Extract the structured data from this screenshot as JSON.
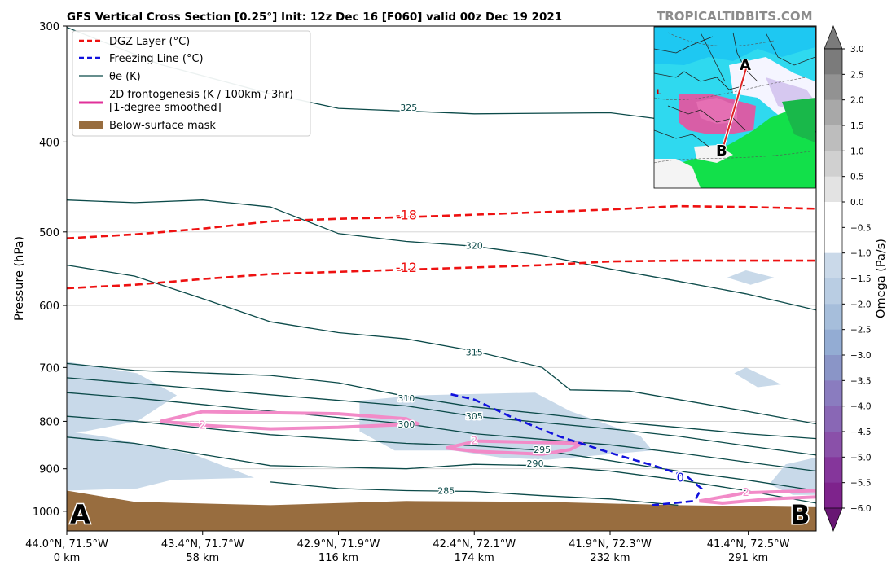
{
  "header": {
    "title": "GFS Vertical Cross Section [0.25°] Init: 12z Dec 16 [F060] valid 00z Dec 19 2021",
    "brand": "TROPICALTIDBITS.COM"
  },
  "colors": {
    "dgz": "#ee1111",
    "freezing": "#1111dd",
    "theta": "#0b4a49",
    "fronto": "#f28bc8",
    "mask": "#986d3f",
    "omega_fill": "#c8d9e9"
  },
  "chart_data": {
    "type": "cross-section",
    "ylabel": "Pressure (hPa)",
    "yscale": "log",
    "ylim": [
      1050,
      300
    ],
    "yticks": [
      300,
      400,
      500,
      600,
      700,
      800,
      900,
      1000
    ],
    "xlim": [
      0,
      320
    ],
    "xticks": [
      {
        "x": 0,
        "coord": "44.0°N, 71.5°W",
        "dist": "0 km"
      },
      {
        "x": 58,
        "coord": "43.4°N, 71.7°W",
        "dist": "58 km"
      },
      {
        "x": 116,
        "coord": "42.9°N, 71.9°W",
        "dist": "116 km"
      },
      {
        "x": 174,
        "coord": "42.4°N, 72.1°W",
        "dist": "174 km"
      },
      {
        "x": 232,
        "coord": "41.9°N, 72.3°W",
        "dist": "232 km"
      },
      {
        "x": 291,
        "coord": "41.4°N, 72.5°W",
        "dist": "291 km"
      }
    ],
    "endpoint_labels": {
      "start": "A",
      "end": "B"
    },
    "legend": {
      "placement": "upper-left",
      "items": [
        {
          "key": "dgz",
          "label": "DGZ Layer (°C)"
        },
        {
          "key": "freezing",
          "label": "Freezing Line (°C)"
        },
        {
          "key": "theta",
          "label": "θe (K)"
        },
        {
          "key": "fronto",
          "label": "2D frontogenesis (K / 100km / 3hr)",
          "label2": "[1-degree smoothed]"
        },
        {
          "key": "mask",
          "label": "Below-surface mask"
        }
      ]
    },
    "dgz_lines": [
      {
        "label": "-18",
        "label_at": [
          145,
          481
        ],
        "points": [
          [
            0,
            508
          ],
          [
            29,
            503
          ],
          [
            58,
            496
          ],
          [
            87,
            487
          ],
          [
            116,
            484
          ],
          [
            145,
            482
          ],
          [
            174,
            479
          ],
          [
            203,
            476
          ],
          [
            232,
            473
          ],
          [
            261,
            469
          ],
          [
            290,
            470
          ],
          [
            320,
            472
          ]
        ]
      },
      {
        "label": "-12",
        "label_at": [
          145,
          548
        ],
        "points": [
          [
            0,
            575
          ],
          [
            29,
            570
          ],
          [
            58,
            562
          ],
          [
            87,
            555
          ],
          [
            116,
            552
          ],
          [
            145,
            549
          ],
          [
            174,
            546
          ],
          [
            203,
            543
          ],
          [
            232,
            538
          ],
          [
            261,
            537
          ],
          [
            290,
            537
          ],
          [
            320,
            537
          ]
        ]
      }
    ],
    "freezing_line": {
      "label": "0",
      "label_at": [
        262,
        922
      ],
      "points": [
        [
          164,
          748
        ],
        [
          174,
          758
        ],
        [
          190,
          792
        ],
        [
          210,
          830
        ],
        [
          232,
          865
        ],
        [
          252,
          895
        ],
        [
          265,
          918
        ],
        [
          271,
          945
        ],
        [
          268,
          975
        ],
        [
          250,
          985
        ],
        [
          249,
          985
        ]
      ]
    },
    "theta_e": [
      {
        "label": "325",
        "label_at": [
          146,
          367
        ],
        "points": [
          [
            0,
            301
          ],
          [
            40,
            330
          ],
          [
            87,
            355
          ],
          [
            116,
            368
          ],
          [
            174,
            373
          ],
          [
            232,
            372
          ],
          [
            261,
            380
          ],
          [
            290,
            385
          ],
          [
            320,
            390
          ]
        ]
      },
      {
        "label": "320",
        "label_at": [
          174,
          517
        ],
        "points": [
          [
            0,
            462
          ],
          [
            29,
            465
          ],
          [
            58,
            462
          ],
          [
            87,
            470
          ],
          [
            116,
            502
          ],
          [
            145,
            512
          ],
          [
            174,
            518
          ],
          [
            203,
            530
          ],
          [
            232,
            548
          ],
          [
            261,
            565
          ],
          [
            290,
            583
          ],
          [
            320,
            607
          ]
        ]
      },
      {
        "label": "315",
        "label_at": [
          174,
          674
        ],
        "points": [
          [
            0,
            543
          ],
          [
            29,
            558
          ],
          [
            58,
            590
          ],
          [
            87,
            625
          ],
          [
            116,
            642
          ],
          [
            145,
            652
          ],
          [
            174,
            672
          ],
          [
            203,
            700
          ],
          [
            215,
            740
          ],
          [
            240,
            742
          ],
          [
            290,
            780
          ],
          [
            320,
            805
          ]
        ]
      },
      {
        "label": "310",
        "label_at": [
          145,
          755
        ],
        "points": [
          [
            0,
            693
          ],
          [
            29,
            705
          ],
          [
            87,
            714
          ],
          [
            116,
            727
          ],
          [
            145,
            752
          ],
          [
            174,
            772
          ],
          [
            203,
            785
          ],
          [
            232,
            800
          ],
          [
            261,
            812
          ],
          [
            290,
            825
          ],
          [
            320,
            835
          ]
        ]
      },
      {
        "label": "305",
        "label_at": [
          174,
          790
        ],
        "points": [
          [
            0,
            718
          ],
          [
            29,
            728
          ],
          [
            87,
            749
          ],
          [
            145,
            770
          ],
          [
            174,
            790
          ],
          [
            232,
            815
          ],
          [
            261,
            830
          ],
          [
            290,
            850
          ],
          [
            320,
            870
          ]
        ]
      },
      {
        "label": "300",
        "label_at": [
          145,
          806
        ],
        "points": [
          [
            0,
            745
          ],
          [
            29,
            755
          ],
          [
            87,
            780
          ],
          [
            145,
            805
          ],
          [
            174,
            825
          ],
          [
            232,
            848
          ],
          [
            261,
            865
          ],
          [
            290,
            885
          ],
          [
            320,
            905
          ]
        ]
      },
      {
        "label": "295",
        "label_at": [
          203,
          858
        ],
        "points": [
          [
            0,
            790
          ],
          [
            29,
            800
          ],
          [
            87,
            827
          ],
          [
            145,
            845
          ],
          [
            174,
            850
          ],
          [
            203,
            860
          ],
          [
            232,
            882
          ],
          [
            261,
            905
          ],
          [
            290,
            925
          ],
          [
            320,
            950
          ]
        ]
      },
      {
        "label": "290",
        "label_at": [
          200,
          888
        ],
        "points": [
          [
            0,
            832
          ],
          [
            29,
            845
          ],
          [
            87,
            893
          ],
          [
            145,
            900
          ],
          [
            174,
            890
          ],
          [
            203,
            893
          ],
          [
            232,
            905
          ],
          [
            261,
            925
          ],
          [
            290,
            950
          ],
          [
            320,
            980
          ]
        ]
      },
      {
        "label": "285",
        "label_at": [
          162,
          950
        ],
        "points": [
          [
            87,
            930
          ],
          [
            116,
            945
          ],
          [
            145,
            950
          ],
          [
            174,
            952
          ],
          [
            203,
            962
          ],
          [
            232,
            970
          ],
          [
            261,
            985
          ]
        ]
      }
    ],
    "frontogenesis": [
      {
        "label": "2",
        "label_at": [
          58,
          808
        ],
        "points": [
          [
            40,
            800
          ],
          [
            58,
            781
          ],
          [
            116,
            785
          ],
          [
            145,
            795
          ],
          [
            150,
            805
          ],
          [
            116,
            812
          ],
          [
            87,
            815
          ],
          [
            58,
            808
          ],
          [
            40,
            800
          ]
        ]
      },
      {
        "label": "2",
        "label_at": [
          174,
          840
        ],
        "points": [
          [
            162,
            855
          ],
          [
            175,
            840
          ],
          [
            220,
            845
          ],
          [
            215,
            858
          ],
          [
            203,
            868
          ],
          [
            175,
            862
          ],
          [
            162,
            855
          ]
        ]
      },
      {
        "label": "2",
        "label_at": [
          290,
          955
        ],
        "points": [
          [
            270,
            975
          ],
          [
            290,
            955
          ],
          [
            320,
            950
          ],
          [
            320,
            965
          ],
          [
            300,
            970
          ],
          [
            280,
            980
          ],
          [
            270,
            975
          ]
        ]
      }
    ],
    "omega_regions": [
      {
        "points": [
          [
            0,
            690
          ],
          [
            30,
            710
          ],
          [
            47,
            750
          ],
          [
            30,
            800
          ],
          [
            8,
            820
          ],
          [
            0,
            822
          ]
        ]
      },
      {
        "points": [
          [
            0,
            820
          ],
          [
            15,
            830
          ],
          [
            55,
            870
          ],
          [
            80,
            920
          ],
          [
            45,
            925
          ],
          [
            30,
            945
          ],
          [
            0,
            950
          ]
        ]
      },
      {
        "points": [
          [
            125,
            760
          ],
          [
            150,
            750
          ],
          [
            200,
            745
          ],
          [
            215,
            780
          ],
          [
            245,
            830
          ],
          [
            250,
            860
          ],
          [
            205,
            880
          ],
          [
            185,
            875
          ],
          [
            165,
            860
          ],
          [
            140,
            860
          ],
          [
            125,
            820
          ]
        ]
      },
      {
        "points": [
          [
            282,
            560
          ],
          [
            290,
            550
          ],
          [
            302,
            560
          ],
          [
            292,
            570
          ]
        ]
      },
      {
        "points": [
          [
            285,
            710
          ],
          [
            290,
            700
          ],
          [
            305,
            730
          ],
          [
            295,
            735
          ]
        ]
      },
      {
        "points": [
          [
            307,
            890
          ],
          [
            320,
            875
          ],
          [
            320,
            960
          ],
          [
            310,
            960
          ],
          [
            300,
            935
          ]
        ]
      }
    ],
    "below_surface_mask": {
      "surface": [
        [
          0,
          950
        ],
        [
          29,
          977
        ],
        [
          87,
          985
        ],
        [
          145,
          975
        ],
        [
          203,
          977
        ],
        [
          261,
          985
        ],
        [
          320,
          990
        ]
      ]
    },
    "colorbar": {
      "label": "Omega (Pa/s)",
      "ticks": [
        "3.0",
        "2.5",
        "2.0",
        "1.5",
        "1.0",
        "0.5",
        "0.0",
        "−0.5",
        "−1.0",
        "−1.5",
        "−2.0",
        "−2.5",
        "−3.0",
        "−3.5",
        "−4.0",
        "−4.5",
        "−5.0",
        "−5.5",
        "−6.0"
      ],
      "colors": [
        "#7b7b7b",
        "#929292",
        "#a8a8a8",
        "#bdbdbd",
        "#d0d0d0",
        "#e3e3e3",
        "#ffffff",
        "#ffffff",
        "#cad9e9",
        "#b9cde3",
        "#a6bedb",
        "#93acd3",
        "#8a95c7",
        "#8a7cbf",
        "#8967b5",
        "#8a50a9",
        "#85369b",
        "#7e238c",
        "#681673"
      ]
    }
  }
}
